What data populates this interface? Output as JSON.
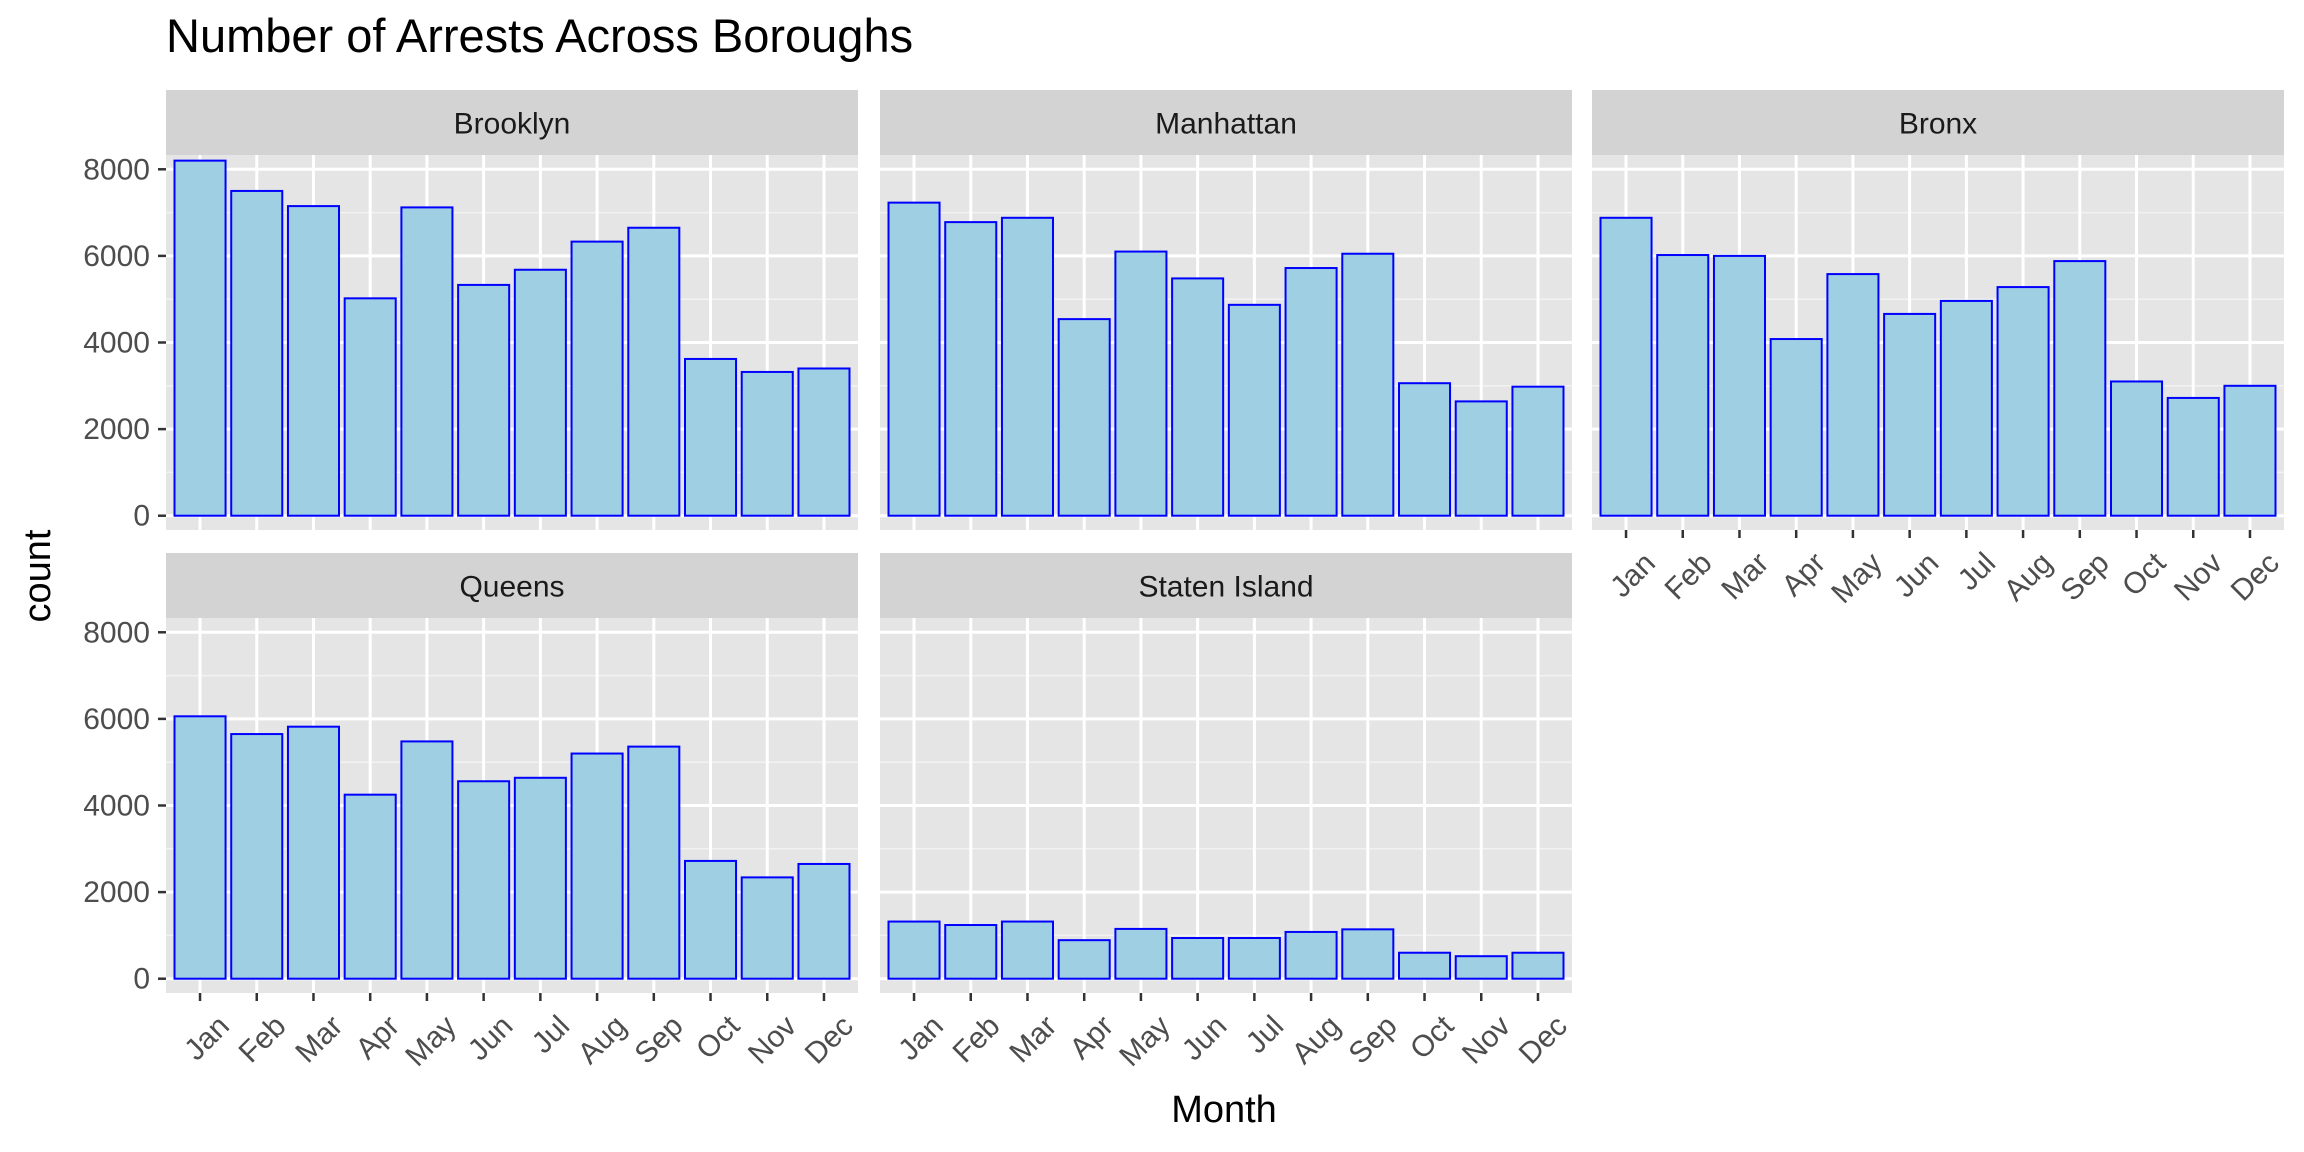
{
  "chart_data": {
    "type": "bar",
    "title": "Number of Arrests Across Boroughs",
    "xlabel": "Month",
    "ylabel": "count",
    "categories": [
      "Jan",
      "Feb",
      "Mar",
      "Apr",
      "May",
      "Jun",
      "Jul",
      "Aug",
      "Sep",
      "Oct",
      "Nov",
      "Dec"
    ],
    "ylim": [
      0,
      8000
    ],
    "yticks": [
      0,
      2000,
      4000,
      6000,
      8000
    ],
    "grid": true,
    "bar_fill": "#9ecfe3",
    "bar_stroke": "#0000ff",
    "panel_bg": "#e5e5e5",
    "strip_bg": "#d3d3d3",
    "series": [
      {
        "name": "Brooklyn",
        "values": [
          8200,
          7500,
          7150,
          5020,
          7120,
          5330,
          5680,
          6330,
          6650,
          3620,
          3320,
          3400
        ]
      },
      {
        "name": "Manhattan",
        "values": [
          7230,
          6780,
          6880,
          4540,
          6100,
          5480,
          4870,
          5720,
          6050,
          3060,
          2640,
          2980
        ]
      },
      {
        "name": "Bronx",
        "values": [
          6880,
          6020,
          6000,
          4080,
          5580,
          4660,
          4960,
          5280,
          5880,
          3100,
          2720,
          3000
        ]
      },
      {
        "name": "Queens",
        "values": [
          6060,
          5650,
          5820,
          4250,
          5480,
          4560,
          4640,
          5200,
          5360,
          2720,
          2340,
          2650
        ]
      },
      {
        "name": "Staten Island",
        "values": [
          1320,
          1240,
          1320,
          890,
          1150,
          940,
          940,
          1080,
          1140,
          600,
          520,
          600
        ]
      }
    ]
  }
}
